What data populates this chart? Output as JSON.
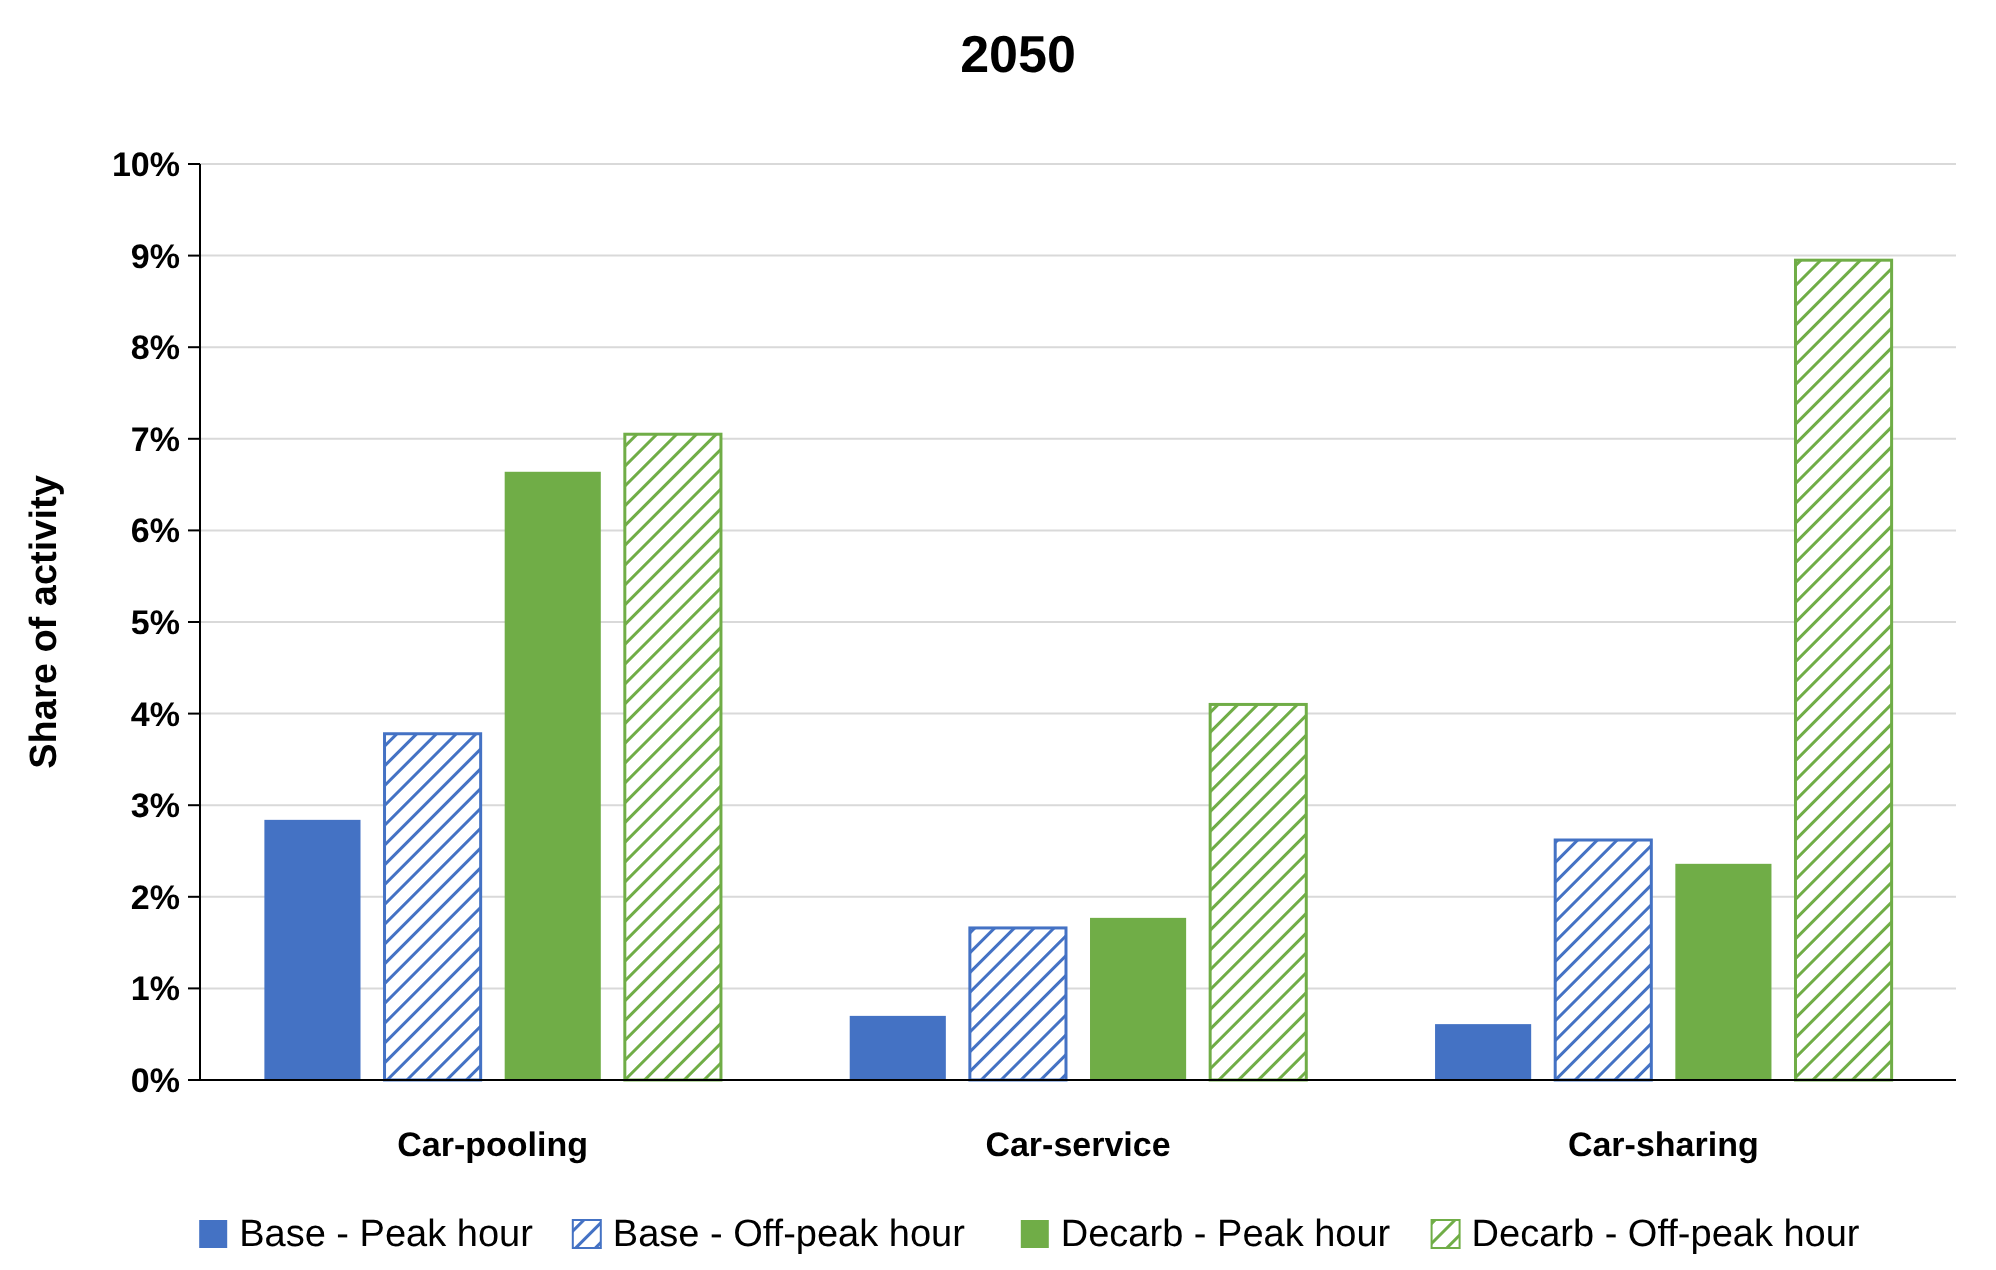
{
  "chart_data": {
    "type": "bar",
    "title": "2050",
    "ylabel": "Share of activity",
    "categories": [
      "Car-pooling",
      "Car-service",
      "Car-sharing"
    ],
    "series": [
      {
        "name": "Base - Peak hour",
        "color": "#4472c4",
        "values": [
          2.84,
          0.7,
          0.61
        ]
      },
      {
        "name": "Base - Off-peak hour",
        "color": "#4472c4",
        "values": [
          3.78,
          1.66,
          2.62
        ]
      },
      {
        "name": "Decarb - Peak hour",
        "color": "#70ad47",
        "values": [
          6.64,
          1.77,
          2.36
        ]
      },
      {
        "name": "Decarb - Off-peak hour",
        "color": "#70ad47",
        "values": [
          7.05,
          4.1,
          8.95
        ]
      }
    ],
    "ylim": [
      0,
      10
    ],
    "yticks": [
      {
        "value": 0,
        "label": "0%"
      },
      {
        "value": 1,
        "label": "1%"
      },
      {
        "value": 2,
        "label": "2%"
      },
      {
        "value": 3,
        "label": "3%"
      },
      {
        "value": 4,
        "label": "4%"
      },
      {
        "value": 5,
        "label": "5%"
      },
      {
        "value": 6,
        "label": "6%"
      },
      {
        "value": 7,
        "label": "7%"
      },
      {
        "value": 8,
        "label": "8%"
      },
      {
        "value": 9,
        "label": "9%"
      },
      {
        "value": 10,
        "label": "10%"
      }
    ],
    "grid": "y",
    "legend": "bottom"
  }
}
